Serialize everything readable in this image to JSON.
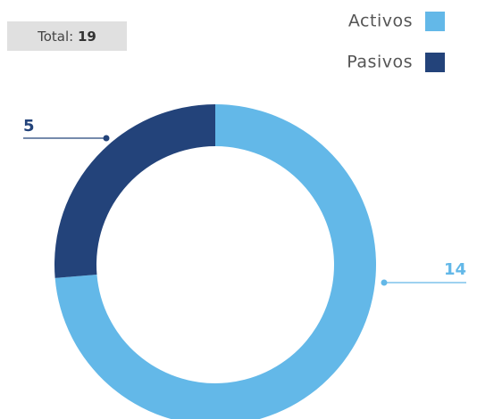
{
  "chart_data": {
    "type": "donut",
    "total_label": "Total:",
    "total": 19,
    "categories": [
      "Activos",
      "Pasivos"
    ],
    "values": [
      14,
      5
    ],
    "colors": [
      "#63b8e8",
      "#23437a"
    ],
    "legend": "top-right"
  }
}
